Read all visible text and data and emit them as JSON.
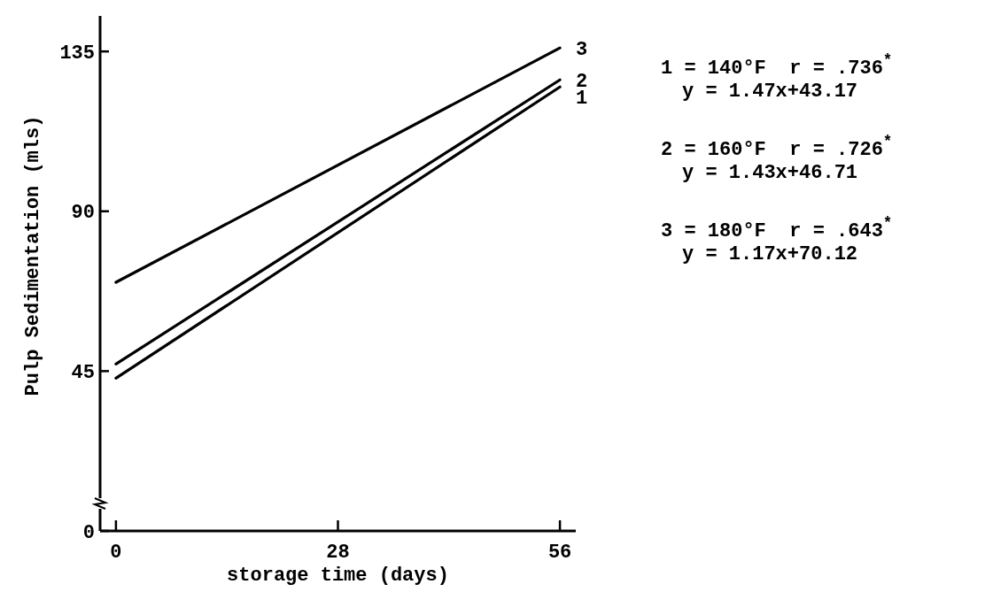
{
  "chart_data": {
    "type": "line",
    "xlabel": "storage time (days)",
    "ylabel": "Pulp Sedimentation (mls)",
    "xlim": [
      -2,
      58
    ],
    "xticks": [
      0,
      28,
      56
    ],
    "ylim": [
      0,
      145
    ],
    "yticks": [
      0,
      45,
      90,
      135
    ],
    "grid": false,
    "marker": "none",
    "line_style": "solid",
    "x": [
      0,
      56
    ],
    "series": [
      {
        "name": "1",
        "color": "#000000",
        "values": [
          43,
          125
        ]
      },
      {
        "name": "2",
        "color": "#000000",
        "values": [
          47,
          127
        ]
      },
      {
        "name": "3",
        "color": "#000000",
        "values": [
          70,
          136
        ]
      }
    ],
    "annotations": [
      "1 = 140°F  r = .736$^{*}$",
      "y = 1.47x+43.17",
      "2 = 160°F  r = .726$^{*}$",
      "y = 1.43x+46.71",
      "3 = 180°F  r = .643$^{*}$",
      "y = 1.17x+70.12"
    ]
  }
}
